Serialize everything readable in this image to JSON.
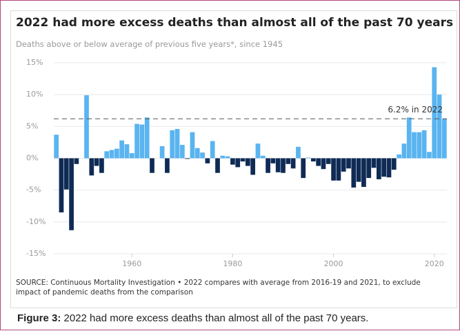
{
  "chart_data": {
    "type": "bar",
    "title": "2022 had more excess deaths than almost all of the past 70 years",
    "subtitle": "Deaths above or below average of previous five years*, since 1945",
    "x": [
      1945,
      1946,
      1947,
      1948,
      1949,
      1950,
      1951,
      1952,
      1953,
      1954,
      1955,
      1956,
      1957,
      1958,
      1959,
      1960,
      1961,
      1962,
      1963,
      1964,
      1965,
      1966,
      1967,
      1968,
      1969,
      1970,
      1971,
      1972,
      1973,
      1974,
      1975,
      1976,
      1977,
      1978,
      1979,
      1980,
      1981,
      1982,
      1983,
      1984,
      1985,
      1986,
      1987,
      1988,
      1989,
      1990,
      1991,
      1992,
      1993,
      1994,
      1995,
      1996,
      1997,
      1998,
      1999,
      2000,
      2001,
      2002,
      2003,
      2004,
      2005,
      2006,
      2007,
      2008,
      2009,
      2010,
      2011,
      2012,
      2013,
      2014,
      2015,
      2016,
      2017,
      2018,
      2019,
      2020,
      2021,
      2022
    ],
    "values": [
      3.7,
      -8.5,
      -4.9,
      -11.3,
      -0.9,
      0,
      9.9,
      -2.7,
      -1.2,
      -2.3,
      1.1,
      1.3,
      1.5,
      2.8,
      2.2,
      0.8,
      5.4,
      5.3,
      6.4,
      -2.3,
      0,
      1.9,
      -2.3,
      4.4,
      4.6,
      2.1,
      -0.1,
      4.1,
      1.6,
      0.9,
      -0.8,
      2.7,
      -2.3,
      0.4,
      0.3,
      -1,
      -1.4,
      -0.5,
      -1.2,
      -2.6,
      2.3,
      0.4,
      -2.3,
      -0.8,
      -2.2,
      -2.3,
      -0.9,
      -1.6,
      1.8,
      -3.1,
      0.1,
      -0.5,
      -1.2,
      -1.7,
      -0.9,
      -3.5,
      -3.5,
      -2.1,
      -1.6,
      -4.6,
      -3.7,
      -4.5,
      -3.1,
      -1.5,
      -3.3,
      -2.9,
      -3.0,
      -1.8,
      0.6,
      2.3,
      6.4,
      4.1,
      4.1,
      4.4,
      1.0,
      14.3,
      10.0,
      6.2
    ],
    "color_positive": "#5ab4f0",
    "color_negative": "#0f2b55",
    "xlim": [
      1944.5,
      2022.5
    ],
    "xticks": [
      1960,
      1980,
      2000,
      2020
    ],
    "ylim": [
      -15,
      15
    ],
    "yticks": [
      {
        "value": -15,
        "label": "-15%"
      },
      {
        "value": -10,
        "label": "-10%"
      },
      {
        "value": -5,
        "label": "-5%"
      },
      {
        "value": 0,
        "label": "0%"
      },
      {
        "value": 5,
        "label": "5%"
      },
      {
        "value": 10,
        "label": "10%"
      },
      {
        "value": 15,
        "label": "15%"
      }
    ],
    "grid": true,
    "annotation": "6.2% in 2022",
    "source": "SOURCE: Continuous Mortality Investigation • 2022 compares with average from 2016-19 and 2021, to exclude impact of pandemic deaths from the comparison"
  },
  "caption": {
    "label": "Figure 3:",
    "text": "2022 had more excess deaths than almost all of the past 70 years."
  }
}
